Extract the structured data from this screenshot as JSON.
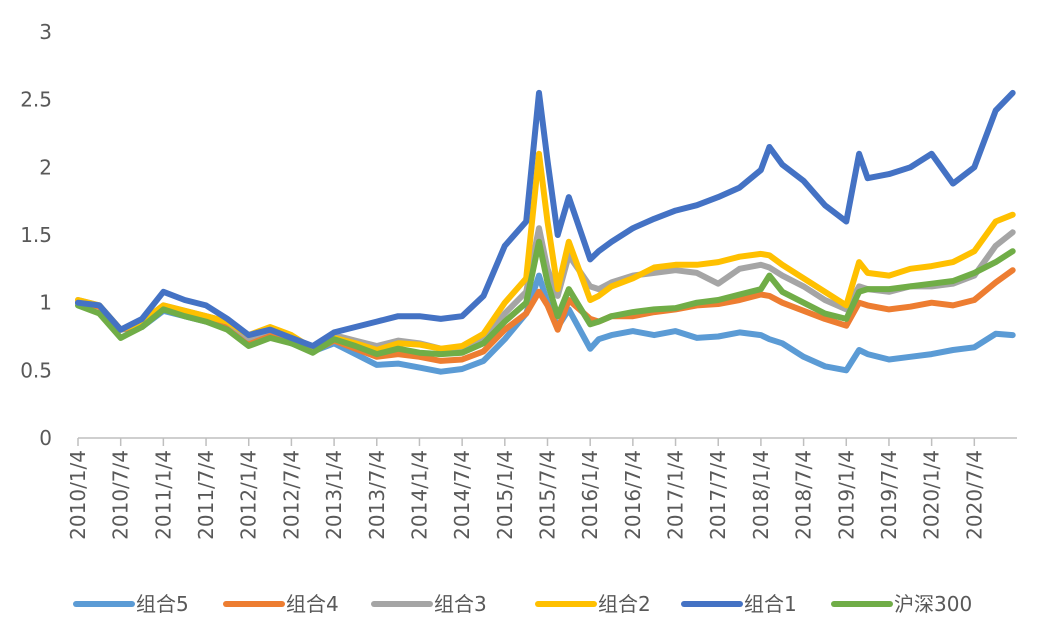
{
  "chart_data": {
    "type": "line",
    "title": "",
    "xlabel": "",
    "ylabel": "",
    "ylim": [
      0,
      3
    ],
    "y_ticks": [
      "0",
      "0.5",
      "1",
      "1.5",
      "2",
      "2.5",
      "3"
    ],
    "x_ticks": [
      "2010/1/4",
      "2010/7/4",
      "2011/1/4",
      "2011/7/4",
      "2012/1/4",
      "2012/7/4",
      "2013/1/4",
      "2013/7/4",
      "2014/1/4",
      "2014/7/4",
      "2015/1/4",
      "2015/7/4",
      "2016/1/4",
      "2016/7/4",
      "2017/1/4",
      "2017/7/4",
      "2018/1/4",
      "2018/7/4",
      "2019/1/4",
      "2019/7/4",
      "2020/1/4",
      "2020/7/4"
    ],
    "x": [
      2010.0,
      2010.25,
      2010.5,
      2010.75,
      2011.0,
      2011.25,
      2011.5,
      2011.75,
      2012.0,
      2012.25,
      2012.5,
      2012.75,
      2013.0,
      2013.25,
      2013.5,
      2013.75,
      2014.0,
      2014.25,
      2014.5,
      2014.75,
      2015.0,
      2015.25,
      2015.4,
      2015.5,
      2015.62,
      2015.75,
      2016.0,
      2016.1,
      2016.25,
      2016.5,
      2016.75,
      2017.0,
      2017.25,
      2017.5,
      2017.75,
      2018.0,
      2018.1,
      2018.25,
      2018.5,
      2018.75,
      2019.0,
      2019.15,
      2019.25,
      2019.5,
      2019.75,
      2020.0,
      2020.25,
      2020.5,
      2020.75,
      2020.95
    ],
    "legend_position": "bottom",
    "series": [
      {
        "name": "组合5",
        "color": "#5B9BD5",
        "values": [
          1.0,
          0.97,
          0.8,
          0.82,
          0.94,
          0.9,
          0.86,
          0.82,
          0.72,
          0.76,
          0.7,
          0.64,
          0.7,
          0.62,
          0.54,
          0.55,
          0.52,
          0.49,
          0.51,
          0.57,
          0.73,
          0.92,
          1.2,
          1.0,
          0.82,
          0.95,
          0.66,
          0.73,
          0.76,
          0.79,
          0.76,
          0.79,
          0.74,
          0.75,
          0.78,
          0.76,
          0.73,
          0.7,
          0.6,
          0.53,
          0.5,
          0.65,
          0.62,
          0.58,
          0.6,
          0.62,
          0.65,
          0.67,
          0.77,
          0.76
        ]
      },
      {
        "name": "组合4",
        "color": "#ED7D31",
        "values": [
          1.0,
          0.97,
          0.8,
          0.84,
          0.96,
          0.92,
          0.88,
          0.84,
          0.72,
          0.78,
          0.72,
          0.64,
          0.72,
          0.66,
          0.6,
          0.62,
          0.6,
          0.57,
          0.58,
          0.64,
          0.8,
          0.92,
          1.08,
          0.98,
          0.8,
          1.02,
          0.88,
          0.86,
          0.9,
          0.9,
          0.93,
          0.95,
          0.98,
          0.99,
          1.02,
          1.06,
          1.05,
          1.0,
          0.94,
          0.88,
          0.83,
          1.0,
          0.98,
          0.95,
          0.97,
          1.0,
          0.98,
          1.02,
          1.15,
          1.24
        ]
      },
      {
        "name": "组合3",
        "color": "#A5A5A5",
        "values": [
          1.02,
          0.98,
          0.8,
          0.86,
          0.98,
          0.94,
          0.9,
          0.86,
          0.74,
          0.8,
          0.74,
          0.66,
          0.76,
          0.72,
          0.68,
          0.72,
          0.7,
          0.66,
          0.66,
          0.72,
          0.92,
          1.08,
          1.55,
          1.25,
          1.05,
          1.35,
          1.12,
          1.1,
          1.15,
          1.2,
          1.22,
          1.24,
          1.22,
          1.14,
          1.25,
          1.28,
          1.26,
          1.2,
          1.12,
          1.02,
          0.95,
          1.12,
          1.1,
          1.08,
          1.12,
          1.12,
          1.14,
          1.2,
          1.42,
          1.52
        ]
      },
      {
        "name": "组合2",
        "color": "#FFC000",
        "values": [
          1.02,
          0.98,
          0.8,
          0.86,
          0.98,
          0.94,
          0.9,
          0.86,
          0.76,
          0.82,
          0.76,
          0.66,
          0.74,
          0.7,
          0.65,
          0.7,
          0.69,
          0.66,
          0.68,
          0.77,
          1.0,
          1.18,
          2.1,
          1.6,
          1.1,
          1.45,
          1.02,
          1.05,
          1.12,
          1.18,
          1.26,
          1.28,
          1.28,
          1.3,
          1.34,
          1.36,
          1.35,
          1.28,
          1.18,
          1.08,
          0.98,
          1.3,
          1.22,
          1.2,
          1.25,
          1.27,
          1.3,
          1.38,
          1.6,
          1.65
        ]
      },
      {
        "name": "组合1",
        "color": "#4472C4",
        "values": [
          1.0,
          0.98,
          0.8,
          0.88,
          1.08,
          1.02,
          0.98,
          0.88,
          0.76,
          0.8,
          0.74,
          0.68,
          0.78,
          0.82,
          0.86,
          0.9,
          0.9,
          0.88,
          0.9,
          1.05,
          1.42,
          1.6,
          2.55,
          2.05,
          1.5,
          1.78,
          1.32,
          1.38,
          1.45,
          1.55,
          1.62,
          1.68,
          1.72,
          1.78,
          1.85,
          1.98,
          2.15,
          2.02,
          1.9,
          1.72,
          1.6,
          2.1,
          1.92,
          1.95,
          2.0,
          2.1,
          1.88,
          2.0,
          2.42,
          2.55
        ]
      },
      {
        "name": "沪深300",
        "color": "#70AD47",
        "values": [
          0.98,
          0.92,
          0.74,
          0.82,
          0.95,
          0.9,
          0.86,
          0.8,
          0.68,
          0.74,
          0.7,
          0.63,
          0.73,
          0.68,
          0.62,
          0.66,
          0.63,
          0.62,
          0.63,
          0.7,
          0.86,
          1.0,
          1.45,
          1.15,
          0.9,
          1.1,
          0.84,
          0.86,
          0.9,
          0.93,
          0.95,
          0.96,
          1.0,
          1.02,
          1.06,
          1.1,
          1.2,
          1.08,
          1.0,
          0.92,
          0.88,
          1.08,
          1.1,
          1.1,
          1.12,
          1.14,
          1.16,
          1.22,
          1.3,
          1.38
        ]
      }
    ]
  }
}
